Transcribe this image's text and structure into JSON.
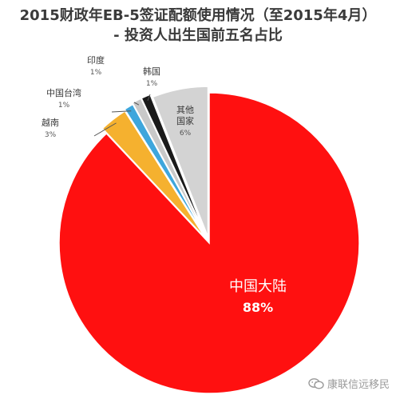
{
  "chart_data": {
    "type": "pie",
    "title": "2015财政年EB-5签证配额使用情况（至2015年4月）",
    "subtitle": "- 投资人出生国前五名占比",
    "slices": [
      {
        "label": "中国大陆",
        "label_lines": [
          "中国大陆"
        ],
        "value": 88,
        "value_text": "88%",
        "color": "#ff1010"
      },
      {
        "label": "越南",
        "label_lines": [
          "越南"
        ],
        "value": 3,
        "value_text": "3%",
        "color": "#f5b12f"
      },
      {
        "label": "中国台湾",
        "label_lines": [
          "中国台湾"
        ],
        "value": 1,
        "value_text": "1%",
        "color": "#3ea6dc"
      },
      {
        "label": "印度",
        "label_lines": [
          "印度"
        ],
        "value": 1,
        "value_text": "1%",
        "color": "#c9c9c9"
      },
      {
        "label": "韩国",
        "label_lines": [
          "韩国"
        ],
        "value": 1,
        "value_text": "1%",
        "color": "#1a1a1a"
      },
      {
        "label": "其他国家",
        "label_lines": [
          "其他",
          "国家"
        ],
        "value": 6,
        "value_text": "6%",
        "color": "#d3d3d3"
      }
    ],
    "colors": {
      "title": "#3a3a3a",
      "label": "#3a3a3a",
      "value": "#555555",
      "inside_label": "#ffffff"
    }
  },
  "watermark": {
    "text": "康联信远移民",
    "icon": "wechat-icon"
  }
}
